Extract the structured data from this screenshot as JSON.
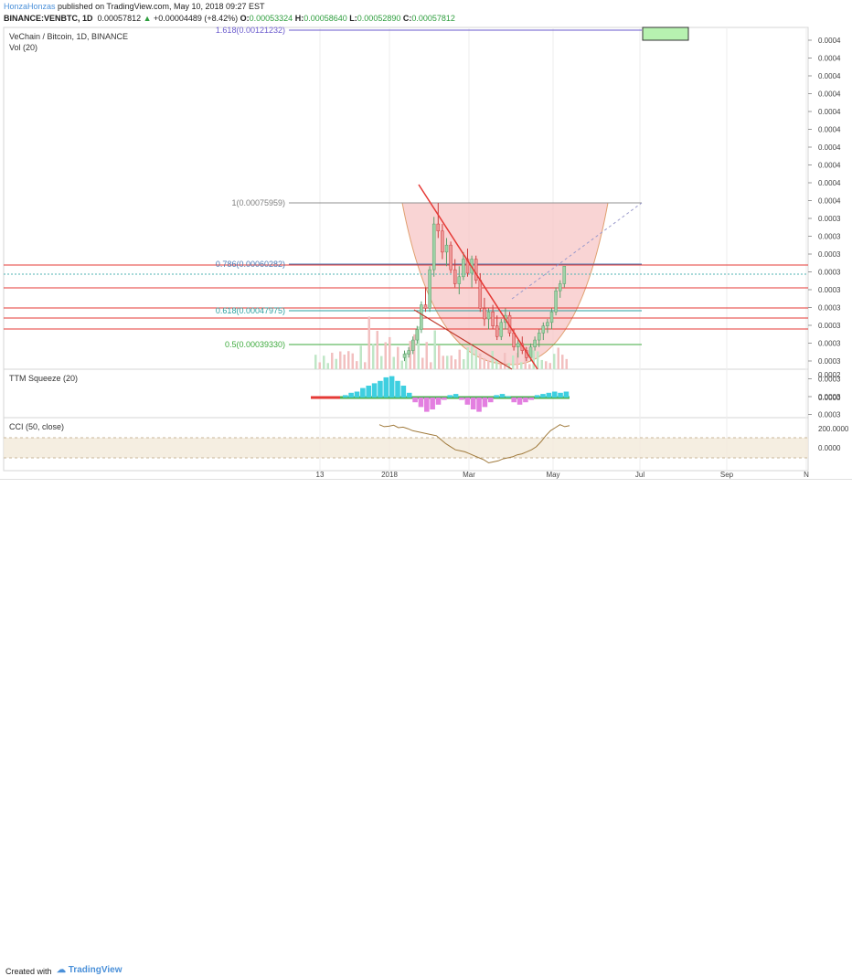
{
  "header": {
    "line1_author": "HonzaHonzas",
    "line1_rest": " published on TradingView.com, May 10, 2018 09:27 EST",
    "symbol": "BINANCE:VENBTC, 1D",
    "last": "0.00057812",
    "change": "+0.00004489 (+8.42%)",
    "o_label": "O:",
    "o": "0.00053324",
    "h_label": "H:",
    "h": "0.00058640",
    "l_label": "L:",
    "l": "0.00052890",
    "c_label": "C:",
    "c": "0.00057812"
  },
  "legend": {
    "title": "VeChain / Bitcoin, 1D, BINANCE",
    "vol": "Vol (20)",
    "ttm": "TTM Squeeze (20)",
    "cci": "CCI (50, close)"
  },
  "fib_labels": [
    {
      "text": "1.618(0.00121232)",
      "color": "#6a5acd"
    },
    {
      "text": "1(0.00075959)",
      "color": "#808080"
    },
    {
      "text": "0.786(0.00060282)",
      "color": "#4a7ab5"
    },
    {
      "text": "0.618(0.00047975)",
      "color": "#2aa0a0"
    },
    {
      "text": "0.5(0.00039330)",
      "color": "#3daa3d"
    }
  ],
  "axis": {
    "price_ticks": [
      "0.0004",
      "0.0004",
      "0.0004",
      "0.0004",
      "0.0004",
      "0.0004",
      "0.0004",
      "0.0004",
      "0.0004",
      "0.0004",
      "0.0003",
      "0.0003",
      "0.0003",
      "0.0003",
      "0.0003",
      "0.0003",
      "0.0003",
      "0.0003",
      "0.0003",
      "0.0003",
      "0.0003",
      "0.0003"
    ],
    "ttm_ticks": [
      "0.0002",
      "0.0000"
    ],
    "cci_ticks": [
      "200.0000",
      "0.0000"
    ],
    "time_ticks": [
      "13",
      "2018",
      "Mar",
      "May",
      "Jul",
      "Sep",
      "N"
    ]
  },
  "footer": {
    "created_with": "Created with",
    "brand": "TradingView"
  },
  "colors": {
    "up": "#9fd3a8",
    "down": "#ee9a9a",
    "upline": "#5a9e6a",
    "downline": "#cc3b3b",
    "red": "#e53935",
    "cup_fill": "#f7c5c5",
    "cci": "#a07a3c",
    "target_box": "#b7f2b0"
  },
  "chart_data": {
    "type": "candlestick",
    "series": [
      {
        "name": "VENBTC",
        "values": [
          [
            0.00032,
            0.00034,
            0.00031,
            0.00033
          ],
          [
            0.00033,
            0.00035,
            0.00032,
            0.00034
          ],
          [
            0.00034,
            0.00038,
            0.00033,
            0.00037
          ],
          [
            0.00037,
            0.00041,
            0.00036,
            0.0004
          ],
          [
            0.0004,
            0.00048,
            0.00039,
            0.00047
          ],
          [
            0.00047,
            0.00052,
            0.00045,
            0.00046
          ],
          [
            0.00046,
            0.00058,
            0.00045,
            0.00057
          ],
          [
            0.00057,
            0.00072,
            0.00055,
            0.0007
          ],
          [
            0.0007,
            0.00076,
            0.00066,
            0.00068
          ],
          [
            0.00068,
            0.0007,
            0.0006,
            0.00062
          ],
          [
            0.00062,
            0.00066,
            0.00058,
            0.00064
          ],
          [
            0.00064,
            0.00065,
            0.00056,
            0.00057
          ],
          [
            0.00057,
            0.0006,
            0.00052,
            0.00053
          ],
          [
            0.00053,
            0.00058,
            0.0005,
            0.00055
          ],
          [
            0.00055,
            0.00062,
            0.00054,
            0.0006
          ],
          [
            0.0006,
            0.00063,
            0.00055,
            0.00056
          ],
          [
            0.00056,
            0.00061,
            0.00052,
            0.0006
          ],
          [
            0.0006,
            0.00061,
            0.00053,
            0.00054
          ],
          [
            0.00054,
            0.00056,
            0.00045,
            0.00046
          ],
          [
            0.00046,
            0.00049,
            0.00041,
            0.00043
          ],
          [
            0.00043,
            0.00046,
            0.0004,
            0.00045
          ],
          [
            0.00045,
            0.00047,
            0.0004,
            0.00041
          ],
          [
            0.00041,
            0.00044,
            0.00037,
            0.00038
          ],
          [
            0.00038,
            0.00043,
            0.00037,
            0.00042
          ],
          [
            0.00042,
            0.00046,
            0.0004,
            0.00044
          ],
          [
            0.00044,
            0.00045,
            0.00038,
            0.00039
          ],
          [
            0.00039,
            0.0004,
            0.00034,
            0.00035
          ],
          [
            0.00035,
            0.00037,
            0.00032,
            0.00036
          ],
          [
            0.00036,
            0.00038,
            0.00033,
            0.00034
          ],
          [
            0.00034,
            0.00035,
            0.00031,
            0.00032
          ],
          [
            0.00032,
            0.00036,
            0.00031,
            0.00035
          ],
          [
            0.00035,
            0.00038,
            0.00034,
            0.00037
          ],
          [
            0.00037,
            0.0004,
            0.00035,
            0.00039
          ],
          [
            0.00039,
            0.00042,
            0.00037,
            0.00041
          ],
          [
            0.00041,
            0.00043,
            0.00039,
            0.00042
          ],
          [
            0.00042,
            0.00046,
            0.0004,
            0.00045
          ],
          [
            0.00045,
            0.00052,
            0.00044,
            0.00051
          ],
          [
            0.00051,
            0.00054,
            0.00049,
            0.00053
          ],
          [
            0.00053,
            0.00058,
            0.00052,
            0.00058
          ]
        ]
      }
    ],
    "cci_values": [
      230,
      210,
      215,
      225,
      200,
      205,
      190,
      170,
      160,
      150,
      140,
      130,
      120,
      80,
      40,
      10,
      -20,
      -30,
      -40,
      -60,
      -80,
      -100,
      -120,
      -150,
      -140,
      -130,
      -110,
      -100,
      -90,
      -70,
      -60,
      -40,
      -20,
      10,
      60,
      120,
      170,
      200,
      230,
      210,
      220
    ],
    "ttm_values": [
      2e-05,
      4e-05,
      5e-05,
      8e-05,
      0.0001,
      0.00012,
      0.00014,
      0.00017,
      0.00018,
      0.00014,
      0.0001,
      4e-05,
      -4e-05,
      -8e-05,
      -0.00012,
      -0.0001,
      -6e-05,
      -2e-05,
      2e-05,
      3e-05,
      -2e-05,
      -6e-05,
      -0.0001,
      -0.00012,
      -8e-05,
      -4e-05,
      2e-05,
      3e-05,
      1e-05,
      -4e-05,
      -6e-05,
      -4e-05,
      -2e-05,
      2e-05,
      3e-05,
      4e-05,
      5e-05,
      4e-05,
      5e-05
    ]
  }
}
